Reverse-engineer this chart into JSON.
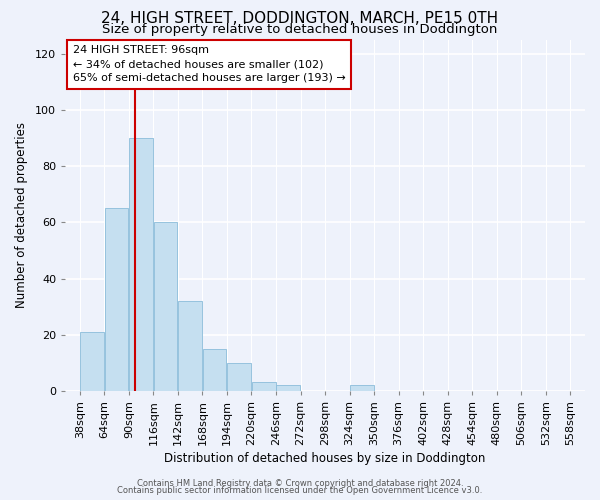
{
  "title": "24, HIGH STREET, DODDINGTON, MARCH, PE15 0TH",
  "subtitle": "Size of property relative to detached houses in Doddington",
  "xlabel": "Distribution of detached houses by size in Doddington",
  "ylabel": "Number of detached properties",
  "bin_edges": [
    38,
    64,
    90,
    116,
    142,
    168,
    194,
    220,
    246,
    272,
    298,
    324,
    350,
    376,
    402,
    428,
    454,
    480,
    506,
    532,
    558
  ],
  "bar_heights": [
    21,
    65,
    90,
    60,
    32,
    15,
    10,
    3,
    2,
    0,
    0,
    2,
    0,
    0,
    0,
    0,
    0,
    0,
    0,
    0
  ],
  "bar_color": "#c5dff0",
  "bar_edgecolor": "#8bbcda",
  "redline_x": 96,
  "redline_color": "#cc0000",
  "ylim": [
    0,
    125
  ],
  "yticks": [
    0,
    20,
    40,
    60,
    80,
    100,
    120
  ],
  "annotation_line1": "24 HIGH STREET: 96sqm",
  "annotation_line2": "← 34% of detached houses are smaller (102)",
  "annotation_line3": "65% of semi-detached houses are larger (193) →",
  "annotation_box_facecolor": "#ffffff",
  "annotation_box_edgecolor": "#cc0000",
  "footer_line1": "Contains HM Land Registry data © Crown copyright and database right 2024.",
  "footer_line2": "Contains public sector information licensed under the Open Government Licence v3.0.",
  "background_color": "#eef2fb",
  "grid_color": "#ffffff",
  "title_fontsize": 11,
  "subtitle_fontsize": 9.5,
  "axis_label_fontsize": 8.5,
  "tick_fontsize": 8,
  "annotation_fontsize": 8,
  "footer_fontsize": 6
}
